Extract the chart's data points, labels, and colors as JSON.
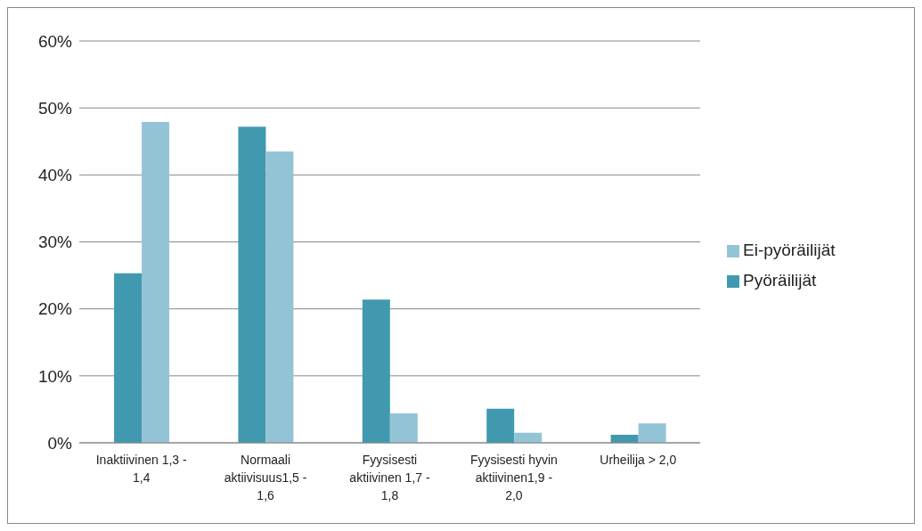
{
  "chart_data": {
    "type": "bar",
    "categories": [
      "Inaktiivinen 1,3 - 1,4",
      "Normaali aktiivisuus1,5 - 1,6",
      "Fyysisesti aktiivinen 1,7 - 1,8",
      "Fyysisesti hyvin aktiivinen1,9 - 2,0",
      "Urheilija > 2,0"
    ],
    "series": [
      {
        "name": "Pyöräilijät",
        "color": "#4199b0",
        "values": [
          25.3,
          47.2,
          21.4,
          5.1,
          1.2
        ]
      },
      {
        "name": "Ei-pyöräilijät",
        "color": "#93c4d5",
        "values": [
          47.9,
          43.5,
          4.4,
          1.5,
          2.9
        ]
      }
    ],
    "ylim": [
      0,
      60
    ],
    "yticks": [
      {
        "value": 0,
        "label": "0%"
      },
      {
        "value": 10,
        "label": "10%"
      },
      {
        "value": 20,
        "label": "20%"
      },
      {
        "value": 30,
        "label": "30%"
      },
      {
        "value": 40,
        "label": "40%"
      },
      {
        "value": 50,
        "label": "50%"
      },
      {
        "value": 60,
        "label": "60%"
      }
    ],
    "grid": "y",
    "legend": "right"
  }
}
